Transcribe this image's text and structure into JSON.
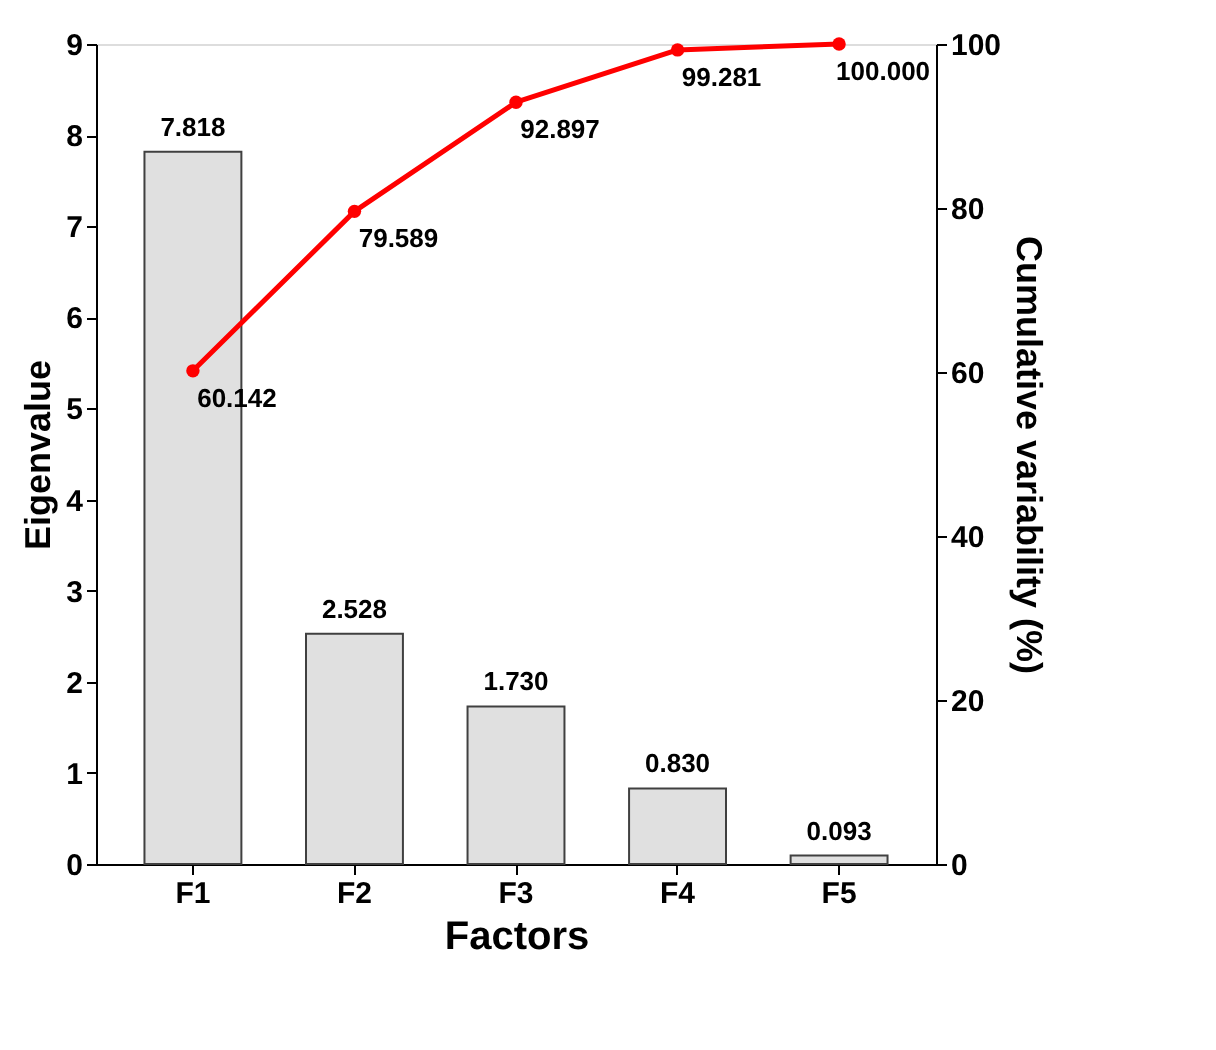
{
  "chart_data": {
    "type": "bar",
    "xlabel": "Factors",
    "ylabel": "Eigenvalue",
    "y2label": "Cumulative variability (%)",
    "categories": [
      "F1",
      "F2",
      "F3",
      "F4",
      "F5"
    ],
    "series": [
      {
        "color": "#e0e0e0",
        "values": [
          7.818,
          2.528,
          1.73,
          0.83,
          0.093
        ],
        "value_labels": [
          "7.818",
          "2.528",
          "1.730",
          "0.830",
          "0.093"
        ]
      },
      {
        "type": "line",
        "axis": "y2",
        "color": "#ff0000",
        "values": [
          60.142,
          79.589,
          92.897,
          99.281,
          100.0
        ],
        "value_labels": [
          "60.142",
          "79.589",
          "92.897",
          "99.281",
          "100.000"
        ]
      }
    ],
    "ylim": [
      0,
      9
    ],
    "yticks": [
      0,
      1,
      2,
      3,
      4,
      5,
      6,
      7,
      8,
      9
    ],
    "y2lim": [
      0,
      100
    ],
    "y2ticks": [
      0,
      20,
      40,
      60,
      80,
      100
    ],
    "marker": "circle",
    "grid": false
  }
}
